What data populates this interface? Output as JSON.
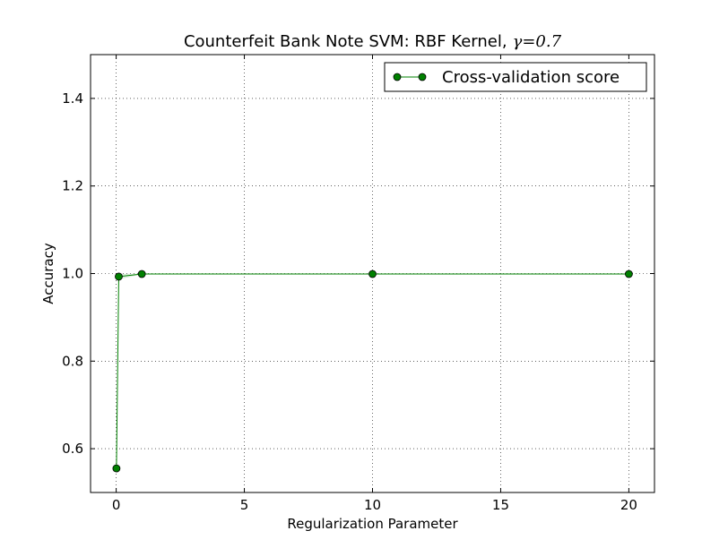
{
  "chart_data": {
    "type": "line",
    "title": "Counterfeit Bank Note SVM: RBF Kernel,",
    "title_math": "γ=0.7",
    "xlabel": "Regularization Parameter",
    "ylabel": "Accuracy",
    "xlim": [
      -1,
      21
    ],
    "ylim": [
      0.5,
      1.5
    ],
    "xticks": [
      0,
      5,
      10,
      15,
      20
    ],
    "yticks": [
      0.6,
      0.8,
      1.0,
      1.2,
      1.4
    ],
    "xtick_labels": [
      "0",
      "5",
      "10",
      "15",
      "20"
    ],
    "ytick_labels": [
      "0.6",
      "0.8",
      "1.0",
      "1.2",
      "1.4"
    ],
    "grid": true,
    "legend_position": "upper right",
    "series": [
      {
        "name": "Cross-validation score",
        "color": "#008000",
        "marker": "circle",
        "x": [
          0.01,
          0.1,
          1,
          10,
          20
        ],
        "y": [
          0.555,
          0.993,
          0.999,
          0.999,
          0.999
        ],
        "band_lower": [
          0.555,
          0.987,
          0.998,
          0.998,
          0.998
        ],
        "band_upper": [
          0.555,
          0.999,
          1.0,
          1.0,
          1.0
        ]
      }
    ]
  }
}
